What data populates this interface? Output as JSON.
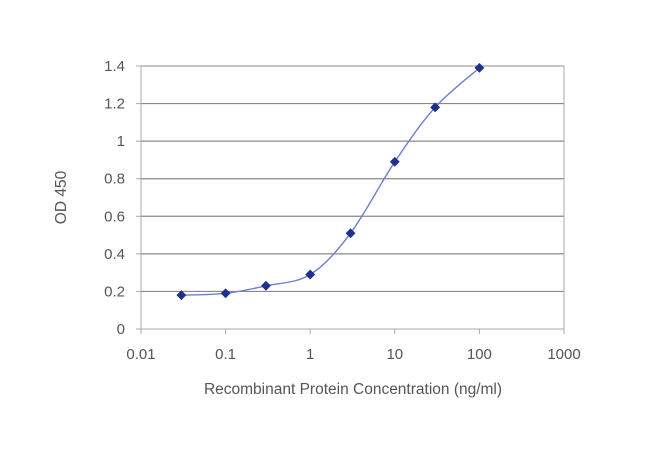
{
  "chart_data": {
    "type": "line",
    "xlabel": "Recombinant Protein Concentration (ng/ml)",
    "ylabel": "OD 450",
    "x_scale": "log",
    "xlim": [
      0.01,
      1000
    ],
    "ylim": [
      0,
      1.4
    ],
    "x_ticks": [
      "0.01",
      "0.1",
      "1",
      "10",
      "100",
      "1000"
    ],
    "y_ticks": [
      "0",
      "0.2",
      "0.4",
      "0.6",
      "0.8",
      "1",
      "1.2",
      "1.4"
    ],
    "grid": "horizontal",
    "series": [
      {
        "x": [
          0.03,
          0.1,
          0.3,
          1,
          3,
          10,
          30,
          100
        ],
        "y": [
          0.18,
          0.19,
          0.23,
          0.29,
          0.51,
          0.89,
          1.18,
          1.39
        ]
      }
    ],
    "colors": {
      "line": "#6f7fd0",
      "marker": "#1f2f8f",
      "grid": "#888888",
      "frame": "#aaaaaa",
      "text": "#555555"
    }
  }
}
